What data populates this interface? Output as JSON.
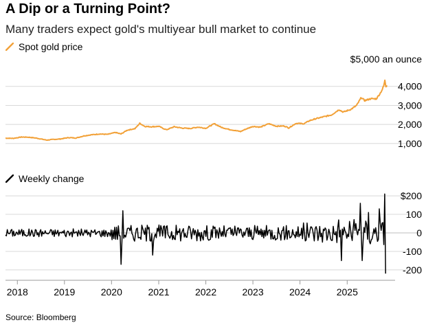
{
  "title": "A Dip or a Turning Point?",
  "subtitle": "Many traders expect gold's multiyear bull market to continue",
  "source": "Source: Bloomberg",
  "colors": {
    "gold": "#f2a138",
    "weekly": "#000000",
    "grid": "#d8d8d8",
    "axis": "#999999"
  },
  "chart_data": [
    {
      "type": "line",
      "title": "",
      "legend": "Spot gold price",
      "unit_label": "$5,000 an ounce",
      "ylim": [
        600,
        5000
      ],
      "y_ticks": [
        1000,
        2000,
        3000,
        4000
      ],
      "y_tick_labels": [
        "1,000",
        "2,000",
        "3,000",
        "4,000"
      ],
      "grid": true,
      "series": [
        {
          "name": "Spot gold price",
          "x": [
            "2017-10-01",
            "2017-12-01",
            "2018-02-01",
            "2018-04-01",
            "2018-06-01",
            "2018-08-15",
            "2018-10-01",
            "2018-12-01",
            "2019-02-01",
            "2019-04-01",
            "2019-06-01",
            "2019-08-01",
            "2019-10-01",
            "2019-12-01",
            "2020-02-01",
            "2020-03-15",
            "2020-05-01",
            "2020-07-01",
            "2020-08-07",
            "2020-09-15",
            "2020-11-01",
            "2021-01-01",
            "2021-03-01",
            "2021-05-01",
            "2021-07-01",
            "2021-09-01",
            "2021-11-01",
            "2022-01-01",
            "2022-03-08",
            "2022-05-01",
            "2022-07-01",
            "2022-09-28",
            "2022-11-01",
            "2023-01-01",
            "2023-03-01",
            "2023-05-04",
            "2023-07-01",
            "2023-09-01",
            "2023-10-06",
            "2023-12-01",
            "2024-02-01",
            "2024-03-15",
            "2024-05-01",
            "2024-07-01",
            "2024-09-01",
            "2024-10-30",
            "2024-12-01",
            "2025-02-01",
            "2025-03-15",
            "2025-04-21",
            "2025-05-15",
            "2025-07-01",
            "2025-08-15",
            "2025-09-15",
            "2025-10-01",
            "2025-10-10",
            "2025-10-20",
            "2025-10-28",
            "2025-11-05"
          ],
          "values": [
            1280,
            1270,
            1340,
            1330,
            1280,
            1180,
            1210,
            1240,
            1310,
            1290,
            1400,
            1460,
            1500,
            1480,
            1580,
            1500,
            1700,
            1780,
            2060,
            1900,
            1880,
            1900,
            1720,
            1880,
            1810,
            1790,
            1860,
            1800,
            2040,
            1850,
            1740,
            1630,
            1740,
            1900,
            1860,
            2040,
            1910,
            1920,
            1820,
            2060,
            2040,
            2200,
            2300,
            2400,
            2500,
            2780,
            2650,
            2800,
            3000,
            3420,
            3250,
            3350,
            3350,
            3650,
            3860,
            4000,
            4300,
            4000,
            4050
          ]
        }
      ]
    },
    {
      "type": "bar",
      "title": "",
      "legend": "Weekly change",
      "ylim": [
        -230,
        230
      ],
      "y_ticks": [
        200,
        100,
        0,
        -100,
        -200
      ],
      "y_tick_labels": [
        "$200",
        "100",
        "0",
        "-100",
        "-200"
      ],
      "grid": true,
      "x_tick_labels": [
        "2018",
        "2019",
        "2020",
        "2021",
        "2022",
        "2023",
        "2024",
        "2025"
      ],
      "series": [
        {
          "name": "Weekly change",
          "x_start": "2017-10-01",
          "x_step_weeks": 1,
          "notable_weeks": [
            {
              "x": "2020-03-13",
              "value": -170
            },
            {
              "x": "2020-03-27",
              "value": 120
            },
            {
              "x": "2020-11-13",
              "value": -120
            },
            {
              "x": "2024-10-25",
              "value": 70
            },
            {
              "x": "2024-11-15",
              "value": -150
            },
            {
              "x": "2025-04-11",
              "value": 160
            },
            {
              "x": "2025-04-25",
              "value": -150
            },
            {
              "x": "2025-06-13",
              "value": 110
            },
            {
              "x": "2025-09-05",
              "value": 130
            },
            {
              "x": "2025-10-17",
              "value": 210
            },
            {
              "x": "2025-10-24",
              "value": -220
            }
          ]
        }
      ]
    }
  ]
}
